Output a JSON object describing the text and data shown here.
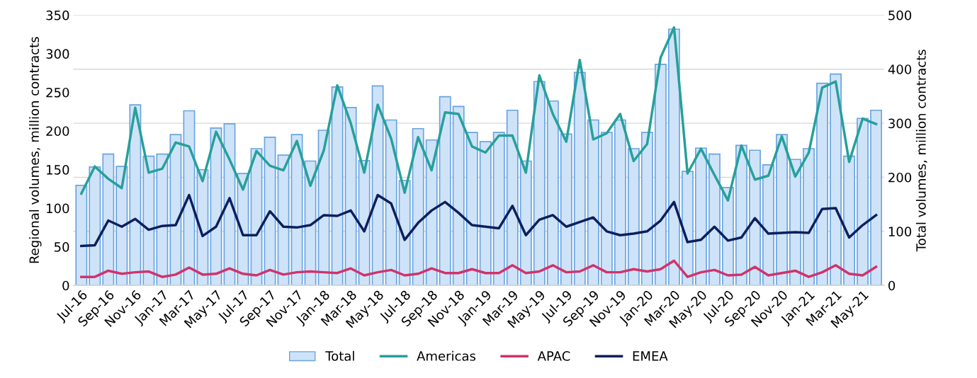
{
  "chart_data": {
    "type": "line",
    "categories": [
      "Jul-16",
      null,
      "Sep-16",
      null,
      "Nov-16",
      null,
      "Jan-17",
      null,
      "Mar-17",
      null,
      "May-17",
      null,
      "Jul-17",
      null,
      "Sep-17",
      null,
      "Nov-17",
      null,
      "Jan-18",
      null,
      "Mar-18",
      null,
      "May-18",
      null,
      "Jul-18",
      null,
      "Sep-18",
      null,
      "Nov-18",
      null,
      "Jan-19",
      null,
      "Mar-19",
      null,
      "May-19",
      null,
      "Jul-19",
      null,
      "Sep-19",
      null,
      "Nov-19",
      null,
      "Jan-20",
      null,
      "Mar-20",
      null,
      "May-20",
      null,
      "Jul-20",
      null,
      "Sep-20",
      null,
      "Nov-20",
      null,
      "Jan-21",
      null,
      "Mar-21",
      null,
      "May-21",
      null
    ],
    "ylabel": "Regional volumes, million contracts",
    "y2label": "Total volumes, million contracts",
    "ylim": [
      0,
      350
    ],
    "yticks": [
      0,
      50,
      100,
      150,
      200,
      250,
      300,
      350
    ],
    "y2lim": [
      0,
      500
    ],
    "y2ticks": [
      0,
      100,
      200,
      300,
      400,
      500
    ],
    "grid": "y",
    "legend": "bottom",
    "series": [
      {
        "name": "Total",
        "type": "bar",
        "axis": "y2",
        "color": "#cfe3f8",
        "values": [
          185,
          219,
          243,
          220,
          334,
          239,
          243,
          279,
          323,
          214,
          291,
          299,
          207,
          253,
          274,
          241,
          279,
          230,
          287,
          367,
          329,
          231,
          369,
          306,
          194,
          290,
          269,
          349,
          331,
          283,
          266,
          283,
          324,
          230,
          377,
          341,
          280,
          394,
          306,
          283,
          306,
          253,
          283,
          409,
          474,
          211,
          254,
          243,
          181,
          259,
          250,
          223,
          279,
          233,
          253,
          374,
          391,
          239,
          309,
          324
        ]
      },
      {
        "name": "Americas",
        "color": "#26a09a",
        "values": [
          119,
          154,
          138,
          126,
          230,
          146,
          151,
          185,
          180,
          135,
          199,
          163,
          124,
          174,
          155,
          149,
          187,
          129,
          175,
          259,
          210,
          146,
          234,
          190,
          120,
          192,
          149,
          224,
          222,
          180,
          172,
          194,
          194,
          146,
          272,
          222,
          186,
          292,
          189,
          197,
          222,
          161,
          183,
          295,
          334,
          145,
          177,
          143,
          110,
          181,
          137,
          142,
          193,
          141,
          172,
          256,
          264,
          160,
          216,
          209
        ]
      },
      {
        "name": "APAC",
        "color": "#d0336b",
        "values": [
          11,
          11,
          19,
          15,
          17,
          18,
          11,
          14,
          23,
          14,
          15,
          22,
          15,
          13,
          20,
          14,
          17,
          18,
          17,
          16,
          22,
          13,
          17,
          20,
          13,
          15,
          22,
          16,
          16,
          21,
          16,
          16,
          26,
          16,
          18,
          26,
          17,
          18,
          26,
          17,
          17,
          21,
          18,
          21,
          32,
          11,
          17,
          20,
          13,
          14,
          24,
          13,
          16,
          19,
          11,
          17,
          26,
          15,
          13,
          24
        ]
      },
      {
        "name": "EMEA",
        "color": "#0c1f5e",
        "values": [
          51,
          52,
          84,
          76,
          86,
          72,
          77,
          78,
          117,
          64,
          76,
          113,
          65,
          65,
          96,
          76,
          75,
          78,
          91,
          90,
          97,
          70,
          117,
          106,
          59,
          81,
          97,
          108,
          94,
          78,
          76,
          74,
          103,
          65,
          85,
          91,
          76,
          82,
          88,
          70,
          65,
          67,
          70,
          84,
          108,
          56,
          59,
          76,
          58,
          62,
          87,
          67,
          68,
          69,
          68,
          99,
          100,
          62,
          78,
          91
        ]
      }
    ]
  }
}
